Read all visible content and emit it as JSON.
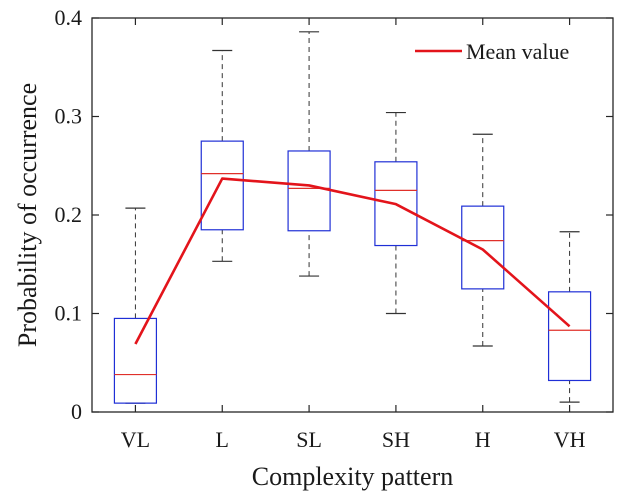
{
  "chart_data": {
    "type": "box",
    "title": "",
    "xlabel": "Complexity pattern",
    "ylabel": "Probability of occurrence",
    "ylim": [
      0,
      0.4
    ],
    "yticks": [
      0,
      0.1,
      0.2,
      0.3,
      0.4
    ],
    "ytick_labels": [
      "0",
      "0.1",
      "0.2",
      "0.3",
      "0.4"
    ],
    "categories": [
      "VL",
      "L",
      "SL",
      "SH",
      "H",
      "VH"
    ],
    "boxes": [
      {
        "category": "VL",
        "whisker_low": 0.009,
        "q1": 0.009,
        "median": 0.038,
        "q3": 0.095,
        "whisker_high": 0.207
      },
      {
        "category": "L",
        "whisker_low": 0.153,
        "q1": 0.185,
        "median": 0.242,
        "q3": 0.275,
        "whisker_high": 0.367
      },
      {
        "category": "SL",
        "whisker_low": 0.138,
        "q1": 0.184,
        "median": 0.227,
        "q3": 0.265,
        "whisker_high": 0.386
      },
      {
        "category": "SH",
        "whisker_low": 0.1,
        "q1": 0.169,
        "median": 0.225,
        "q3": 0.254,
        "whisker_high": 0.304
      },
      {
        "category": "H",
        "whisker_low": 0.067,
        "q1": 0.125,
        "median": 0.174,
        "q3": 0.209,
        "whisker_high": 0.282
      },
      {
        "category": "VH",
        "whisker_low": 0.01,
        "q1": 0.032,
        "median": 0.083,
        "q3": 0.122,
        "whisker_high": 0.183
      }
    ],
    "series": [
      {
        "name": "Mean value",
        "values": [
          0.069,
          0.237,
          0.23,
          0.211,
          0.165,
          0.087
        ]
      }
    ],
    "legend_position": "top-right",
    "grid": false,
    "colors": {
      "box": "#1f2fd6",
      "median": "#e0302a",
      "mean_line": "#e3141b",
      "whisker": "#333333",
      "axis": "#262626"
    }
  }
}
